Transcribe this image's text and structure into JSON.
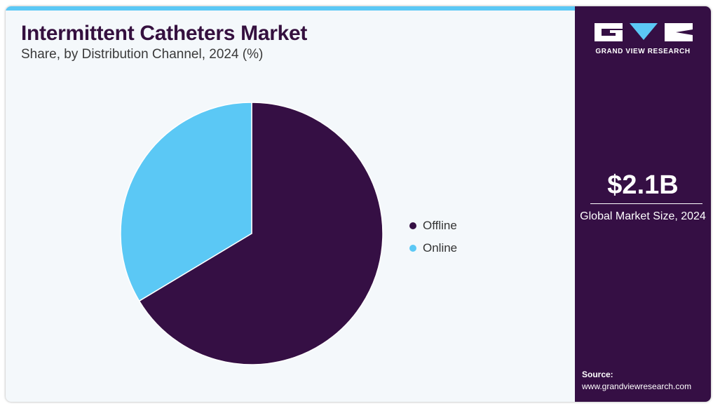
{
  "header": {
    "title": "Intermittent Catheters Market",
    "subtitle": "Share, by Distribution Channel, 2024 (%)"
  },
  "chart_data": {
    "type": "pie",
    "title": "Intermittent Catheters Market",
    "subtitle": "Share, by Distribution Channel, 2024 (%)",
    "legend_position": "right",
    "series": [
      {
        "name": "Offline",
        "value": 66.4,
        "color": "#350f44"
      },
      {
        "name": "Online",
        "value": 33.6,
        "color": "#5bc8f5"
      }
    ]
  },
  "sidebar": {
    "brand": "GRAND VIEW RESEARCH",
    "market_value": "$2.1B",
    "market_label": "Global Market Size, 2024",
    "source_title": "Source:",
    "source_url": "www.grandviewresearch.com"
  },
  "colors": {
    "accent": "#5bc8f5",
    "brand_dark": "#350f44",
    "background": "#f4f8fb"
  }
}
